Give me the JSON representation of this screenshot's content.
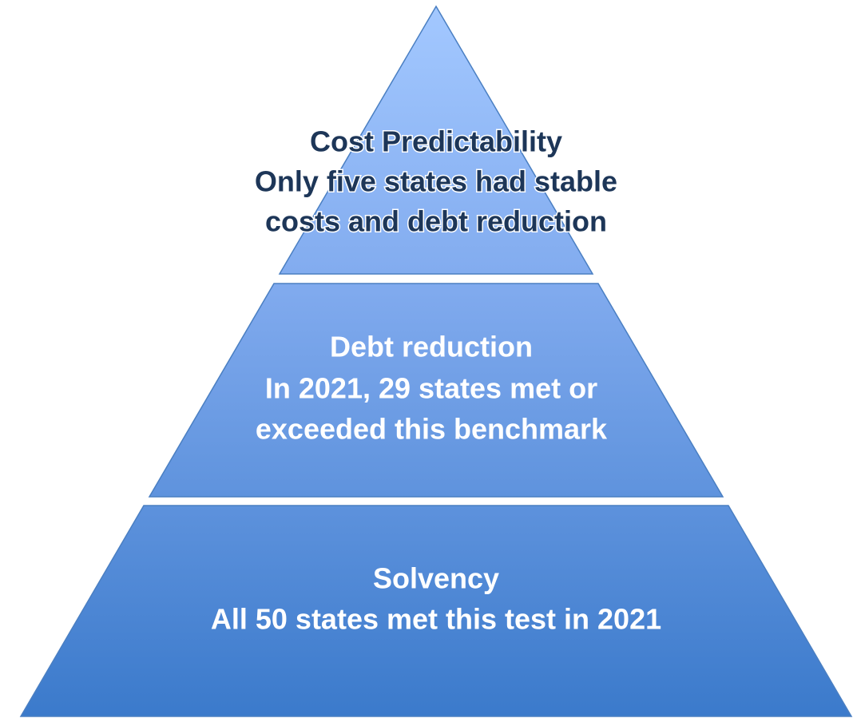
{
  "tiers": [
    {
      "lines": [
        "Cost Predictability",
        "Only five states had stable",
        "costs and debt reduction"
      ]
    },
    {
      "lines": [
        "Debt reduction",
        "In 2021, 29 states met or",
        "exceeded this benchmark"
      ]
    },
    {
      "lines": [
        "Solvency",
        "All 50 states met this test in 2021"
      ]
    }
  ]
}
